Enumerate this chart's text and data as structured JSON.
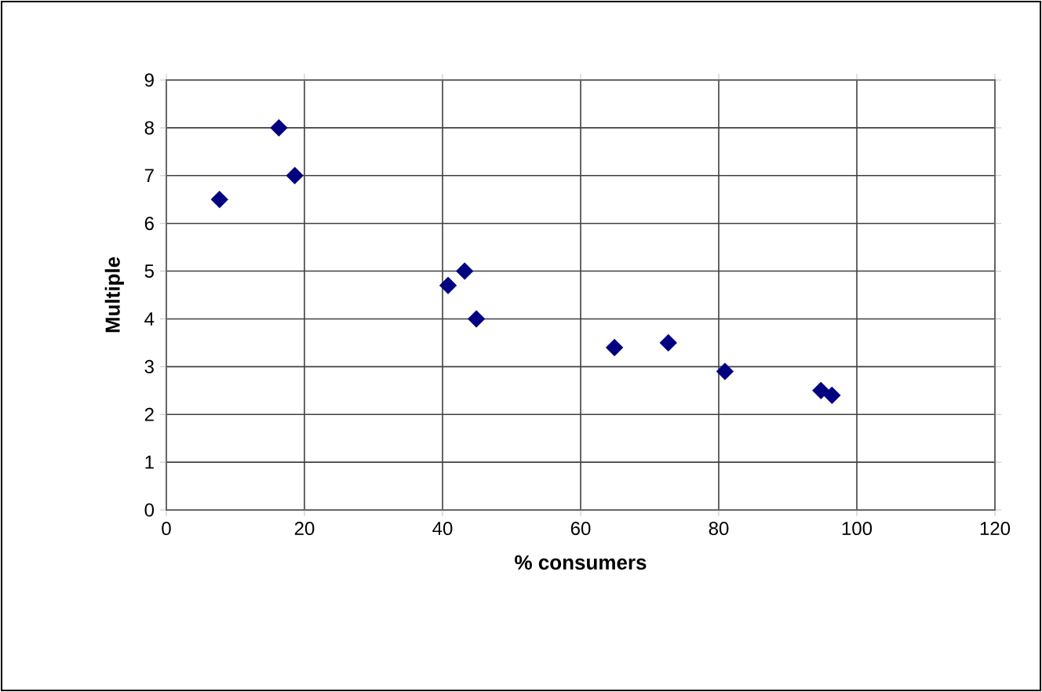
{
  "chart_data": {
    "type": "scatter",
    "xlabel": "% consumers",
    "ylabel": "Multiple",
    "x": [
      7.7,
      16.3,
      18.6,
      40.8,
      43.2,
      44.9,
      64.9,
      72.7,
      80.9,
      94.8,
      96.4
    ],
    "values": [
      6.5,
      8,
      7,
      4.7,
      5,
      4,
      3.4,
      3.5,
      2.9,
      2.5,
      2.4
    ],
    "color": "#000080",
    "marker": "diamond",
    "grid": true,
    "xlim": [
      0,
      120
    ],
    "xticks": [
      0,
      20,
      40,
      60,
      80,
      100,
      120
    ],
    "ylim": [
      0,
      9
    ],
    "yticks": [
      0,
      1,
      2,
      3,
      4,
      5,
      6,
      7,
      8,
      9
    ]
  }
}
